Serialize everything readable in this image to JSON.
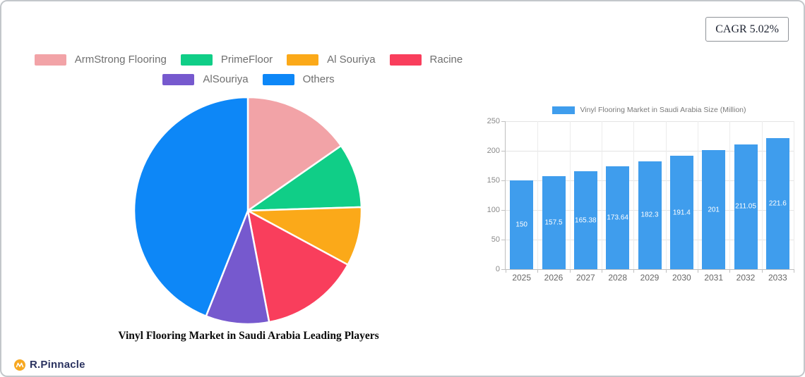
{
  "header": {
    "cagr_badge": "CAGR 5.02%"
  },
  "footer": {
    "brand_name": "R.Pinnacle",
    "brand_icon": "pulse-circle-icon",
    "brand_icon_color": "#F7A821",
    "brand_text_color": "#2B3360"
  },
  "chart_data": [
    {
      "type": "pie",
      "title": "Vinyl Flooring Market in Saudi Arabia Leading Players",
      "labels": [
        "ArmStrong Flooring",
        "PrimeFloor",
        "Al Souriya",
        "Racine",
        "AlSouriya",
        "Others"
      ],
      "values": [
        15.3,
        9.2,
        8.4,
        14.1,
        9.0,
        44.0
      ],
      "unit": "% share (estimated from slice angles)",
      "colors": [
        "#F2A3A7",
        "#10CE87",
        "#FBA919",
        "#F93E5C",
        "#7659CE",
        "#0D87F7"
      ],
      "start_angle_deg": -90,
      "direction": "clockwise",
      "slice_border_color": "#ffffff",
      "legend_position": "top",
      "legend_row_split": 4
    },
    {
      "type": "bar",
      "categories": [
        "2025",
        "2026",
        "2027",
        "2028",
        "2029",
        "2030",
        "2031",
        "2032",
        "2033"
      ],
      "series": [
        {
          "name": "Vinyl Flooring Market in Saudi Arabia Size (Million)",
          "values": [
            150,
            157.5,
            165.38,
            173.64,
            182.3,
            191.4,
            201,
            211.05,
            221.6
          ],
          "color": "#3F9DED"
        }
      ],
      "ylim": [
        0,
        250
      ],
      "yticks": [
        0,
        50,
        100,
        150,
        200,
        250
      ],
      "grid": true,
      "legend_position": "top",
      "value_label_color": "#ffffff"
    }
  ]
}
